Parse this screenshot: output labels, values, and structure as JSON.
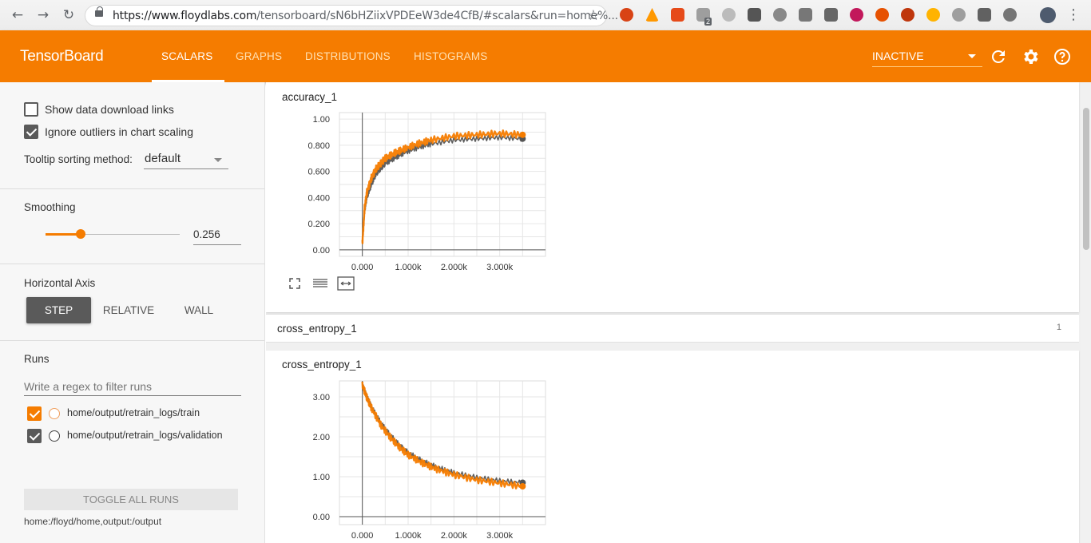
{
  "browser": {
    "url_host": "https://www.floydlabs.com",
    "url_path": "/tensorboard/sN6bHZiixVPDEeW3de4CfB/#scalars&run=home%...",
    "ext_badge": "2"
  },
  "header": {
    "brand": "TensorBoard",
    "tabs": [
      "SCALARS",
      "GRAPHS",
      "DISTRIBUTIONS",
      "HISTOGRAMS"
    ],
    "run_status": "INACTIVE",
    "accent": "#f57c00"
  },
  "sidebar": {
    "show_download_links": "Show data download links",
    "ignore_outliers": "Ignore outliers in chart scaling",
    "tooltip_sorting_label": "Tooltip sorting method:",
    "tooltip_sorting_value": "default",
    "smoothing_label": "Smoothing",
    "smoothing_value": "0.256",
    "horizontal_axis_label": "Horizontal Axis",
    "axis_options": [
      "STEP",
      "RELATIVE",
      "WALL"
    ],
    "runs_label": "Runs",
    "runs_filter_placeholder": "Write a regex to filter runs",
    "runs": [
      {
        "name": "home/output/retrain_logs/train",
        "color": "#f57c00",
        "checked": true
      },
      {
        "name": "home/output/retrain_logs/validation",
        "color": "#444444",
        "checked": true
      }
    ],
    "toggle_all_runs": "TOGGLE ALL RUNS",
    "mapping": "home:/floyd/home,output:/output"
  },
  "main": {
    "group_title": "cross_entropy_1",
    "group_count": "1"
  },
  "chart_data": [
    {
      "type": "line",
      "title": "accuracy_1",
      "x_ticks": [
        "0.000",
        "1.000k",
        "2.000k",
        "3.000k"
      ],
      "y_ticks": [
        "0.00",
        "0.200",
        "0.400",
        "0.600",
        "0.800",
        "1.00"
      ],
      "ylim": [
        -0.05,
        1.05
      ],
      "xlim": [
        -500,
        4000
      ],
      "series": [
        {
          "name": "home/output/retrain_logs/validation",
          "color": "#555555",
          "x": [
            0,
            50,
            100,
            200,
            300,
            400,
            500,
            700,
            900,
            1200,
            1500,
            2000,
            2500,
            3000,
            3500
          ],
          "y": [
            0.05,
            0.3,
            0.4,
            0.5,
            0.58,
            0.62,
            0.66,
            0.7,
            0.74,
            0.78,
            0.81,
            0.84,
            0.85,
            0.86,
            0.85
          ]
        },
        {
          "name": "home/output/retrain_logs/train",
          "color": "#f57c00",
          "x": [
            0,
            50,
            100,
            200,
            300,
            400,
            500,
            700,
            900,
            1200,
            1500,
            2000,
            2500,
            3000,
            3500
          ],
          "y": [
            0.05,
            0.32,
            0.44,
            0.55,
            0.62,
            0.66,
            0.7,
            0.74,
            0.77,
            0.81,
            0.84,
            0.87,
            0.88,
            0.89,
            0.88
          ]
        }
      ]
    },
    {
      "type": "line",
      "title": "cross_entropy_1",
      "x_ticks": [
        "0.000",
        "1.000k",
        "2.000k",
        "3.000k"
      ],
      "y_ticks": [
        "0.00",
        "1.00",
        "2.00",
        "3.00"
      ],
      "ylim": [
        -0.2,
        3.4
      ],
      "xlim": [
        -500,
        4000
      ],
      "series": [
        {
          "name": "home/output/retrain_logs/validation",
          "color": "#555555",
          "x": [
            0,
            100,
            200,
            400,
            600,
            800,
            1000,
            1300,
            1600,
            2000,
            2500,
            3000,
            3500
          ],
          "y": [
            3.3,
            3.0,
            2.75,
            2.35,
            2.05,
            1.8,
            1.6,
            1.4,
            1.25,
            1.1,
            0.98,
            0.9,
            0.85
          ]
        },
        {
          "name": "home/output/retrain_logs/train",
          "color": "#f57c00",
          "x": [
            0,
            100,
            200,
            400,
            600,
            800,
            1000,
            1300,
            1600,
            2000,
            2500,
            3000,
            3500
          ],
          "y": [
            3.3,
            2.98,
            2.72,
            2.3,
            2.0,
            1.75,
            1.55,
            1.35,
            1.2,
            1.05,
            0.92,
            0.84,
            0.76
          ]
        }
      ]
    }
  ]
}
